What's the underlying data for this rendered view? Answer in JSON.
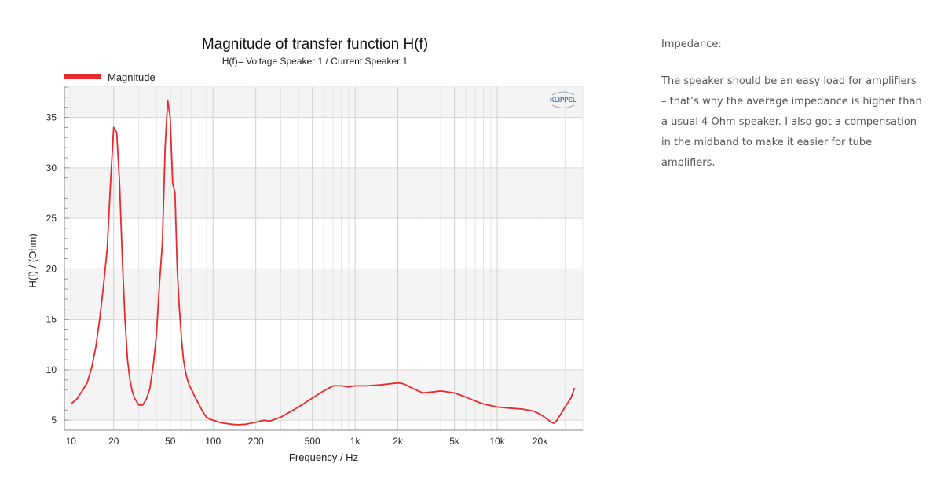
{
  "chart_data": {
    "type": "line",
    "title": "Magnitude of transfer function H(f)",
    "subtitle": "H(f)= Voltage Speaker 1 / Current Speaker 1",
    "xlabel": "Frequency / Hz",
    "ylabel": "H(f) / (Ohm)",
    "xscale": "log",
    "xlim": [
      9,
      40000
    ],
    "ylim": [
      4,
      38
    ],
    "x_ticks": [
      10,
      20,
      50,
      100,
      200,
      500,
      1000,
      2000,
      5000,
      10000,
      20000
    ],
    "x_tick_labels": [
      "10",
      "20",
      "50",
      "100",
      "200",
      "500",
      "1k",
      "2k",
      "5k",
      "10k",
      "20k"
    ],
    "y_ticks": [
      5,
      10,
      15,
      20,
      25,
      30,
      35
    ],
    "y_tick_labels": [
      "5",
      "10",
      "15",
      "20",
      "25",
      "30",
      "35"
    ],
    "grid": true,
    "legend": "top-left",
    "watermark": "KLIPPEL",
    "series": [
      {
        "name": "Magnitude",
        "color": "#e8282b",
        "x": [
          10,
          11,
          12,
          13,
          14,
          15,
          16,
          17,
          18,
          19,
          20,
          21,
          22,
          23,
          24,
          25,
          26,
          27,
          28,
          30,
          32,
          34,
          36,
          38,
          40,
          42,
          44,
          46,
          48,
          50,
          52,
          54,
          56,
          58,
          60,
          62,
          64,
          66,
          68,
          70,
          72,
          74,
          76,
          80,
          85,
          90,
          95,
          100,
          110,
          120,
          135,
          150,
          170,
          200,
          230,
          250,
          300,
          400,
          500,
          600,
          700,
          800,
          900,
          1000,
          1200,
          1500,
          2000,
          2200,
          2500,
          3000,
          3500,
          4000,
          5000,
          6000,
          7000,
          8000,
          10000,
          12000,
          15000,
          18000,
          20000,
          22000,
          24000,
          25000,
          26000,
          28000,
          30000,
          33000,
          35000
        ],
        "y": [
          6.6,
          7.1,
          7.9,
          8.7,
          10.2,
          12.3,
          15.2,
          18.5,
          22.0,
          28.5,
          34.0,
          33.5,
          28.5,
          21.0,
          15.0,
          11.0,
          9.0,
          7.9,
          7.2,
          6.5,
          6.5,
          7.1,
          8.2,
          10.5,
          13.5,
          18.5,
          22.5,
          32.0,
          36.7,
          35.0,
          28.5,
          27.5,
          20.0,
          16.0,
          13.0,
          11.0,
          9.8,
          9.0,
          8.5,
          8.1,
          7.8,
          7.4,
          7.1,
          6.5,
          5.8,
          5.3,
          5.1,
          5.0,
          4.8,
          4.7,
          4.6,
          4.55,
          4.6,
          4.8,
          5.0,
          4.9,
          5.3,
          6.3,
          7.2,
          7.9,
          8.4,
          8.4,
          8.3,
          8.4,
          8.4,
          8.5,
          8.7,
          8.6,
          8.2,
          7.7,
          7.8,
          7.9,
          7.7,
          7.3,
          6.9,
          6.6,
          6.3,
          6.2,
          6.1,
          5.9,
          5.6,
          5.2,
          4.8,
          4.7,
          4.9,
          5.6,
          6.3,
          7.2,
          8.2
        ]
      }
    ]
  },
  "side": {
    "heading": "Impedance:",
    "paragraph": "The speaker should be an easy load for amplifiers – that’s why the average impedance is higher than a usual 4 Ohm speaker. I also got a compensation in the midband to make it easier for tube amplifiers."
  }
}
